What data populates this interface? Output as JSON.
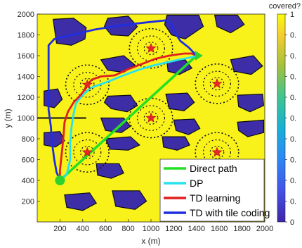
{
  "chart_data": {
    "type": "heatmap",
    "title": "",
    "xlabel": "x (m)",
    "ylabel": "y (m)",
    "xlim": [
      0,
      2000
    ],
    "ylim": [
      0,
      2000
    ],
    "xticks": [
      "200",
      "400",
      "600",
      "800",
      "1000",
      "1200",
      "1400",
      "1600",
      "1800",
      "2000"
    ],
    "yticks": [
      "200",
      "400",
      "600",
      "800",
      "1000",
      "1200",
      "1400",
      "1600",
      "1800",
      "2000"
    ],
    "grid": false,
    "colorbar": {
      "label": "covered?",
      "ticks": [
        "0",
        "0.",
        "0.",
        "0.",
        "0.",
        "0.",
        "0.",
        "0.",
        "0.",
        "0.",
        "1"
      ],
      "range": [
        0,
        1
      ]
    },
    "colors": {
      "covered": "#f9f21a",
      "uncovered": "#3d2ea8",
      "boundary": "#0b0b12",
      "base_station": "#e8262b",
      "start_end_marker": "#2fd12f"
    },
    "base_stations": [
      {
        "x": 1000,
        "y": 1670
      },
      {
        "x": 440,
        "y": 1320
      },
      {
        "x": 1580,
        "y": 1330
      },
      {
        "x": 1000,
        "y": 1000
      },
      {
        "x": 440,
        "y": 670
      },
      {
        "x": 1580,
        "y": 670
      }
    ],
    "start": {
      "x": 200,
      "y": 400
    },
    "end": {
      "x": 1400,
      "y": 1600
    },
    "legend_position": "bottom-right",
    "series": [
      {
        "name": "Direct path",
        "color": "#22e022",
        "points": [
          [
            200,
            400
          ],
          [
            1400,
            1600
          ]
        ]
      },
      {
        "name": "DP",
        "color": "#27e3ef",
        "points": [
          [
            200,
            400
          ],
          [
            260,
            460
          ],
          [
            290,
            600
          ],
          [
            290,
            760
          ],
          [
            300,
            900
          ],
          [
            320,
            1040
          ],
          [
            340,
            1140
          ],
          [
            390,
            1210
          ],
          [
            430,
            1250
          ],
          [
            470,
            1290
          ],
          [
            520,
            1310
          ],
          [
            620,
            1350
          ],
          [
            760,
            1410
          ],
          [
            880,
            1460
          ],
          [
            1000,
            1500
          ],
          [
            1120,
            1530
          ],
          [
            1240,
            1560
          ],
          [
            1340,
            1580
          ],
          [
            1400,
            1600
          ]
        ]
      },
      {
        "name": "TD learning",
        "color": "#e11f1f",
        "points": [
          [
            200,
            400
          ],
          [
            200,
            500
          ],
          [
            210,
            600
          ],
          [
            220,
            700
          ],
          [
            230,
            820
          ],
          [
            240,
            960
          ],
          [
            270,
            1060
          ],
          [
            320,
            1150
          ],
          [
            380,
            1220
          ],
          [
            430,
            1290
          ],
          [
            440,
            1320
          ],
          [
            480,
            1370
          ],
          [
            560,
            1400
          ],
          [
            680,
            1410
          ],
          [
            800,
            1470
          ],
          [
            920,
            1520
          ],
          [
            1040,
            1570
          ],
          [
            1160,
            1600
          ],
          [
            1290,
            1620
          ],
          [
            1360,
            1620
          ],
          [
            1400,
            1600
          ]
        ]
      },
      {
        "name": "TD with tile coding",
        "color": "#1f2ee0",
        "points": [
          [
            200,
            400
          ],
          [
            170,
            480
          ],
          [
            150,
            600
          ],
          [
            130,
            760
          ],
          [
            120,
            920
          ],
          [
            100,
            1080
          ],
          [
            100,
            1300
          ],
          [
            100,
            1520
          ],
          [
            100,
            1700
          ],
          [
            150,
            1760
          ],
          [
            310,
            1800
          ],
          [
            500,
            1850
          ],
          [
            720,
            1890
          ],
          [
            960,
            1920
          ],
          [
            1130,
            1940
          ],
          [
            1180,
            1900
          ],
          [
            1210,
            1820
          ],
          [
            1260,
            1740
          ],
          [
            1330,
            1680
          ],
          [
            1400,
            1600
          ]
        ]
      }
    ]
  }
}
